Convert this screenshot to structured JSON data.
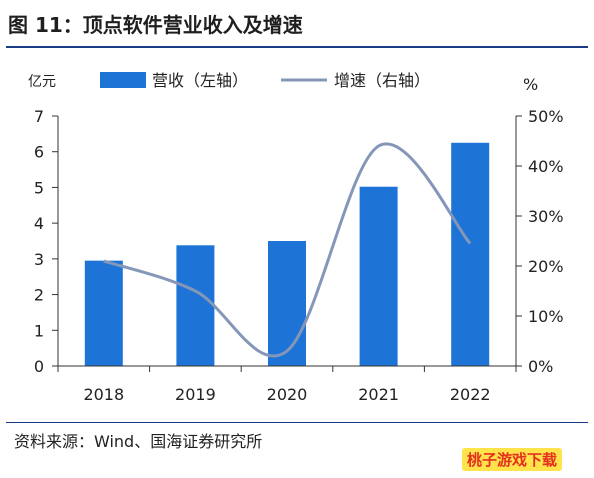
{
  "header": {
    "title": "图 11：顶点软件营业收入及增速"
  },
  "footer": {
    "source": "资料来源：Wind、国海证券研究所",
    "watermark": "桃子游戏下载"
  },
  "chart_data": {
    "type": "bar",
    "categories": [
      "2018",
      "2019",
      "2020",
      "2021",
      "2022"
    ],
    "series": [
      {
        "name": "营收（左轴）",
        "type": "bar",
        "axis": "left",
        "values": [
          2.95,
          3.38,
          3.5,
          5.02,
          6.25
        ]
      },
      {
        "name": "增速（右轴）",
        "type": "line",
        "axis": "right",
        "values": [
          21.0,
          15.0,
          3.0,
          44.0,
          24.5
        ]
      }
    ],
    "left_axis": {
      "unit": "亿元",
      "ylim": [
        0,
        7
      ],
      "ticks": [
        "0",
        "1",
        "2",
        "3",
        "4",
        "5",
        "6",
        "7"
      ]
    },
    "right_axis": {
      "unit": "%",
      "ylim": [
        0,
        50
      ],
      "ticks": [
        "0%",
        "10%",
        "20%",
        "30%",
        "40%",
        "50%"
      ]
    },
    "legend_position": "top",
    "colors": {
      "bar": "#1e74d6",
      "line": "#8597b8"
    },
    "grid": false
  }
}
